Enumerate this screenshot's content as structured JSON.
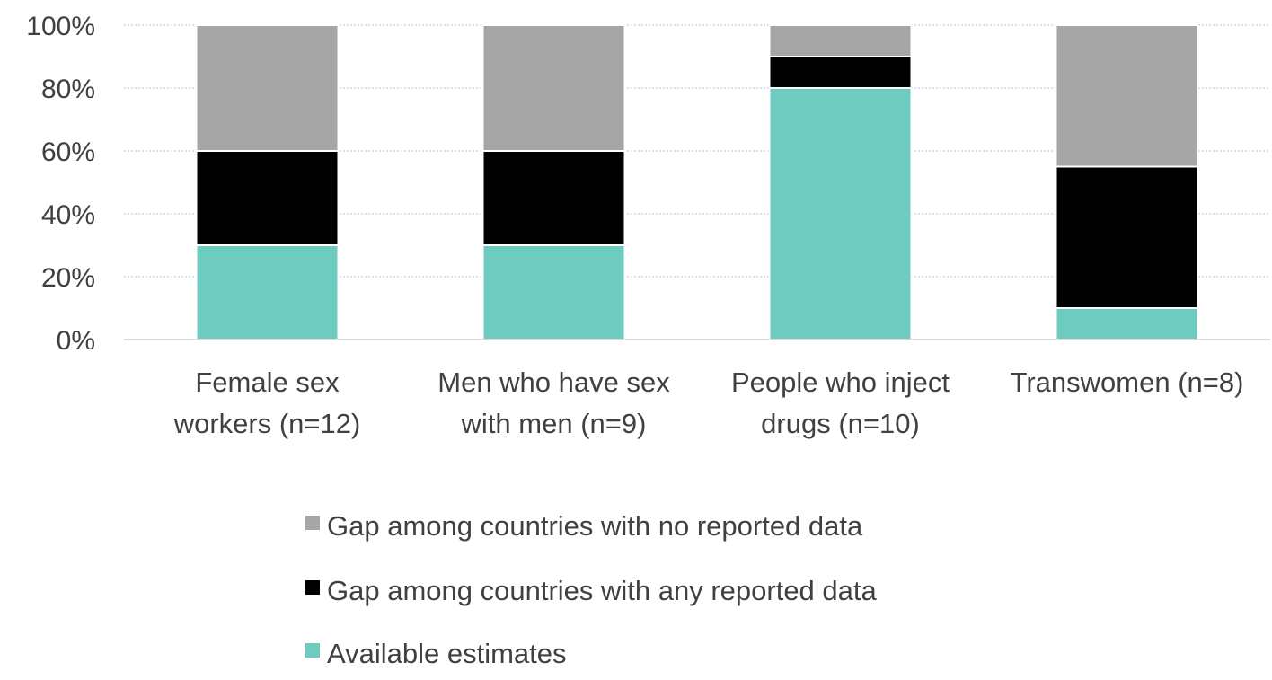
{
  "chart_data": {
    "type": "bar",
    "stacked": true,
    "categories": [
      [
        "Female sex",
        "workers (n=12)"
      ],
      [
        "Men who have sex",
        "with men (n=9)"
      ],
      [
        "People who inject",
        "drugs (n=10)"
      ],
      [
        "Transwomen (n=8)"
      ]
    ],
    "series": [
      {
        "name": "Available estimates",
        "color": "#6ecbbf",
        "values": [
          30,
          30,
          80,
          10
        ]
      },
      {
        "name": "Gap among countries with any reported data",
        "color": "#000000",
        "values": [
          30,
          30,
          10,
          45
        ]
      },
      {
        "name": "Gap among countries with no reported data",
        "color": "#a6a6a6",
        "values": [
          40,
          40,
          10,
          45
        ]
      }
    ],
    "ylim": [
      0,
      100
    ],
    "yticks": [
      "0%",
      "20%",
      "40%",
      "60%",
      "80%",
      "100%"
    ],
    "grid": true,
    "legend_position": "bottom",
    "legend_order": [
      2,
      1,
      0
    ]
  }
}
